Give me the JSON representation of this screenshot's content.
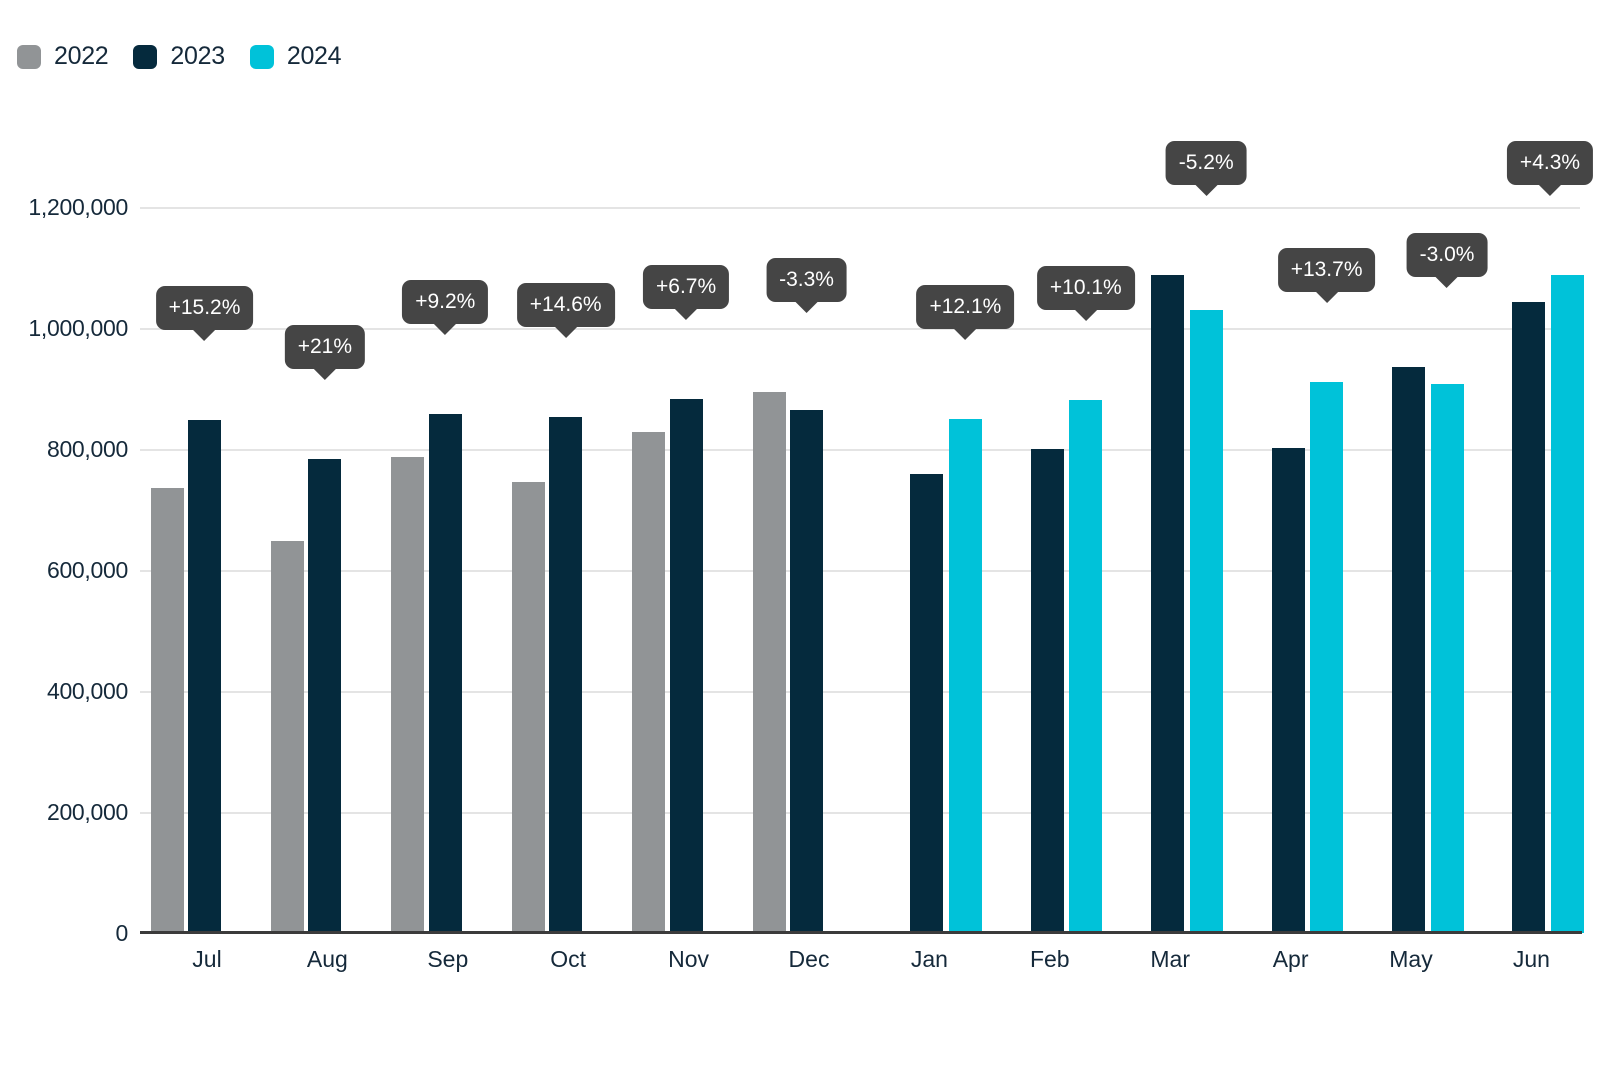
{
  "chart_data": {
    "type": "bar",
    "title": "",
    "xlabel": "",
    "ylabel": "",
    "grid": true,
    "legend_position": "top-left",
    "ylim": [
      0,
      1240000
    ],
    "categories": [
      "Jul",
      "Aug",
      "Sep",
      "Oct",
      "Nov",
      "Dec",
      "Jan",
      "Feb",
      "Mar",
      "Apr",
      "May",
      "Jun"
    ],
    "series": [
      {
        "name": "2022",
        "color": "#919496",
        "values": [
          735000,
          648000,
          786000,
          745000,
          828000,
          894000,
          null,
          null,
          null,
          null,
          null,
          null
        ]
      },
      {
        "name": "2023",
        "color": "#052a3d",
        "values": [
          848000,
          784000,
          858000,
          853000,
          883000,
          865000,
          758000,
          800000,
          1087000,
          801000,
          936000,
          1043000
        ]
      },
      {
        "name": "2024",
        "color": "#00c2d9",
        "values": [
          null,
          null,
          null,
          null,
          null,
          null,
          850000,
          881000,
          1030000,
          911000,
          908000,
          1088000
        ]
      }
    ],
    "pct_change_labels": [
      "+15.2%",
      "+21%",
      "+9.2%",
      "+14.6%",
      "+6.7%",
      "-3.3%",
      "+12.1%",
      "+10.1%",
      "-5.2%",
      "+13.7%",
      "-3.0%",
      "+4.3%"
    ],
    "y_ticks": [
      {
        "label": "1,200,000",
        "value": 1200000
      },
      {
        "label": "1,000,000",
        "value": 1000000
      },
      {
        "label": "800,000",
        "value": 800000
      },
      {
        "label": "600,000",
        "value": 600000
      },
      {
        "label": "400,000",
        "value": 400000
      },
      {
        "label": "200,000",
        "value": 200000
      },
      {
        "label": "0",
        "value": 0
      }
    ],
    "tooltip_bg": "#454545",
    "tooltip_text_color": "#ffffff"
  }
}
